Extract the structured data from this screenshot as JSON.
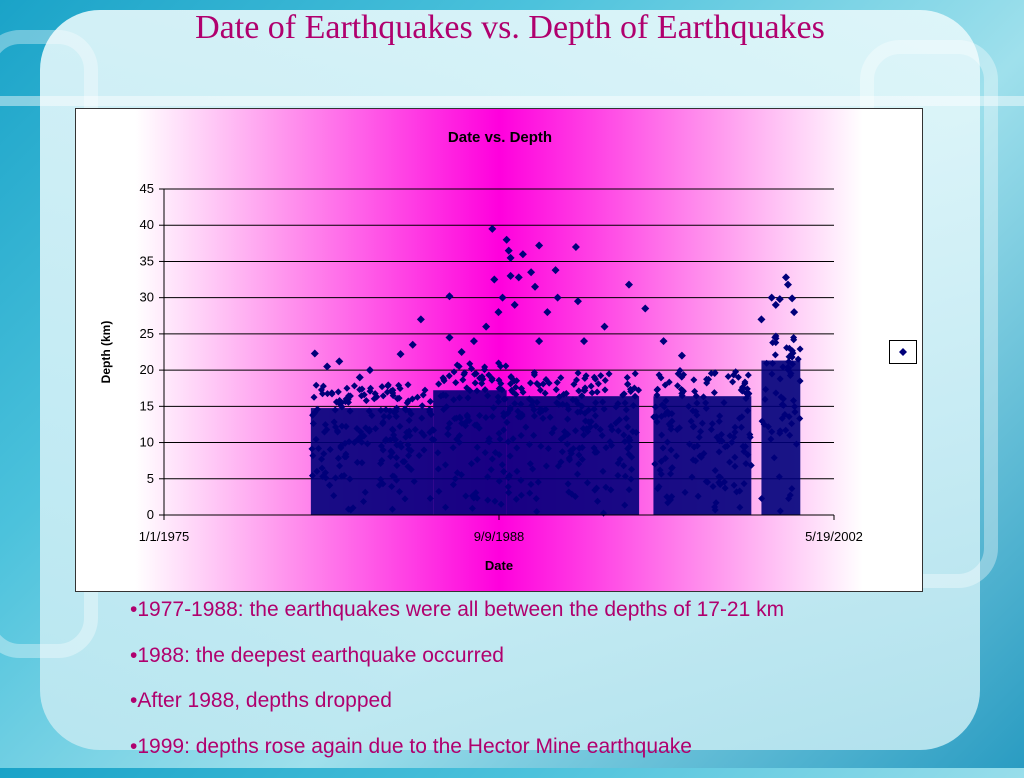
{
  "slide": {
    "title": "Date of Earthquakes vs. Depth of Earthquakes",
    "bullets": [
      "•1977-1988: the earthquakes were all between the depths of 17-21 km",
      "•1988: the deepest earthquake occurred",
      "•After 1988, depths dropped",
      "•1999: depths rose again due to the Hector Mine earthquake"
    ]
  },
  "colors": {
    "marker": "#00007a",
    "title_text": "#b0006e",
    "gradient_center": "#ff00dd"
  },
  "chart_data": {
    "type": "scatter",
    "title": "Date vs. Depth",
    "xlabel": "Date",
    "ylabel": "Depth (km)",
    "x_axis_type": "date",
    "xlim": [
      "1/1/1975",
      "5/19/2002"
    ],
    "x_tick_labels": [
      "1/1/1975",
      "9/9/1988",
      "5/19/2002"
    ],
    "ylim": [
      0,
      45
    ],
    "y_ticks": [
      0,
      5,
      10,
      15,
      20,
      25,
      30,
      35,
      40,
      45
    ],
    "grid": "horizontal",
    "legend": "right",
    "marker": "diamond",
    "clusters": [
      {
        "start": "1/1/1981",
        "end": "1/1/1986",
        "depth_min": 0,
        "depth_max": 18
      },
      {
        "start": "1/1/1986",
        "end": "1/1/1989",
        "depth_min": 0,
        "depth_max": 21
      },
      {
        "start": "1/1/1989",
        "end": "6/1/1994",
        "depth_min": 0,
        "depth_max": 20
      },
      {
        "start": "1/1/1995",
        "end": "1/1/1999",
        "depth_min": 0,
        "depth_max": 20
      },
      {
        "start": "6/1/1999",
        "end": "1/1/2001",
        "depth_min": 0,
        "depth_max": 26
      }
    ],
    "points": [
      {
        "x": "3/1/1981",
        "y": 22.3
      },
      {
        "x": "9/1/1981",
        "y": 20.5
      },
      {
        "x": "3/1/1982",
        "y": 21.2
      },
      {
        "x": "1/1/1983",
        "y": 19.0
      },
      {
        "x": "6/1/1983",
        "y": 20.0
      },
      {
        "x": "9/1/1984",
        "y": 22.2
      },
      {
        "x": "3/1/1985",
        "y": 23.5
      },
      {
        "x": "7/1/1985",
        "y": 27.0
      },
      {
        "x": "9/1/1986",
        "y": 24.5
      },
      {
        "x": "9/1/1986",
        "y": 30.2
      },
      {
        "x": "3/1/1987",
        "y": 22.5
      },
      {
        "x": "9/1/1987",
        "y": 24.0
      },
      {
        "x": "3/1/1988",
        "y": 26.0
      },
      {
        "x": "6/1/1988",
        "y": 39.5
      },
      {
        "x": "7/1/1988",
        "y": 32.5
      },
      {
        "x": "9/1/1988",
        "y": 28.0
      },
      {
        "x": "11/1/1988",
        "y": 30.0
      },
      {
        "x": "1/1/1989",
        "y": 38.0
      },
      {
        "x": "2/1/1989",
        "y": 36.5
      },
      {
        "x": "3/1/1989",
        "y": 35.5
      },
      {
        "x": "3/1/1989",
        "y": 33.0
      },
      {
        "x": "5/1/1989",
        "y": 29.0
      },
      {
        "x": "7/1/1989",
        "y": 32.8
      },
      {
        "x": "9/1/1989",
        "y": 36.0
      },
      {
        "x": "1/1/1990",
        "y": 33.5
      },
      {
        "x": "3/1/1990",
        "y": 31.5
      },
      {
        "x": "5/1/1990",
        "y": 37.2
      },
      {
        "x": "5/1/1990",
        "y": 24.0
      },
      {
        "x": "9/1/1990",
        "y": 28.0
      },
      {
        "x": "1/1/1991",
        "y": 33.8
      },
      {
        "x": "2/1/1991",
        "y": 30.0
      },
      {
        "x": "11/1/1991",
        "y": 37.0
      },
      {
        "x": "12/1/1991",
        "y": 29.5
      },
      {
        "x": "3/1/1992",
        "y": 24.0
      },
      {
        "x": "1/1/1993",
        "y": 26.0
      },
      {
        "x": "1/1/1994",
        "y": 31.8
      },
      {
        "x": "9/1/1994",
        "y": 28.5
      },
      {
        "x": "6/1/1995",
        "y": 24.0
      },
      {
        "x": "3/1/1996",
        "y": 22.0
      },
      {
        "x": "6/1/1999",
        "y": 27.0
      },
      {
        "x": "11/1/1999",
        "y": 30.0
      },
      {
        "x": "1/1/2000",
        "y": 29.0
      },
      {
        "x": "3/1/2000",
        "y": 29.8
      },
      {
        "x": "6/1/2000",
        "y": 32.8
      },
      {
        "x": "7/1/2000",
        "y": 31.8
      },
      {
        "x": "9/1/2000",
        "y": 29.9
      },
      {
        "x": "10/1/2000",
        "y": 28.0
      }
    ]
  }
}
